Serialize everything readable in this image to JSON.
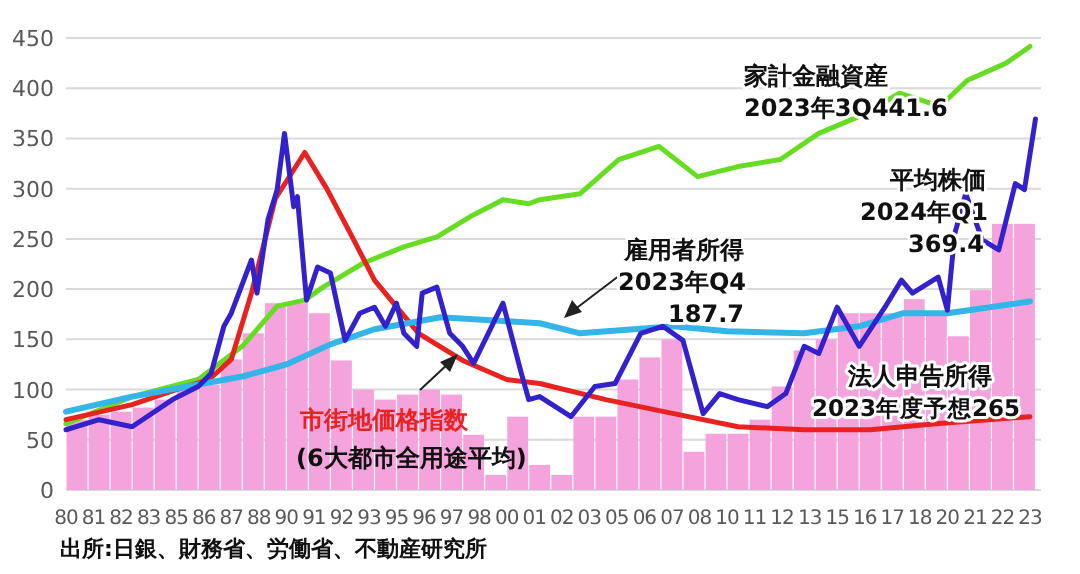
{
  "chart_data": {
    "type": "line",
    "xlim": [
      "1980-01",
      "2024-04"
    ],
    "ylim": [
      0,
      450
    ],
    "grid": "y",
    "yticks": [
      0,
      50,
      100,
      150,
      200,
      250,
      300,
      350,
      400,
      450
    ],
    "xticks": [
      {
        "value": "1980-01",
        "label": "80"
      },
      {
        "value": "1981-04",
        "label": "81"
      },
      {
        "value": "1982-07",
        "label": "82"
      },
      {
        "value": "1983-10",
        "label": "83"
      },
      {
        "value": "1985-01",
        "label": "85"
      },
      {
        "value": "1986-04",
        "label": "86"
      },
      {
        "value": "1987-07",
        "label": "87"
      },
      {
        "value": "1988-10",
        "label": "88"
      },
      {
        "value": "1990-01",
        "label": "90"
      },
      {
        "value": "1991-04",
        "label": "91"
      },
      {
        "value": "1992-07",
        "label": "92"
      },
      {
        "value": "1993-10",
        "label": "93"
      },
      {
        "value": "1995-01",
        "label": "95"
      },
      {
        "value": "1996-04",
        "label": "96"
      },
      {
        "value": "1997-07",
        "label": "97"
      },
      {
        "value": "1998-10",
        "label": "98"
      },
      {
        "value": "2000-01",
        "label": "00"
      },
      {
        "value": "2001-04",
        "label": "01"
      },
      {
        "value": "2002-07",
        "label": "02"
      },
      {
        "value": "2003-10",
        "label": "03"
      },
      {
        "value": "2005-01",
        "label": "05"
      },
      {
        "value": "2006-04",
        "label": "06"
      },
      {
        "value": "2007-07",
        "label": "07"
      },
      {
        "value": "2008-10",
        "label": "08"
      },
      {
        "value": "2010-01",
        "label": "10"
      },
      {
        "value": "2011-04",
        "label": "11"
      },
      {
        "value": "2012-07",
        "label": "12"
      },
      {
        "value": "2013-10",
        "label": "13"
      },
      {
        "value": "2015-01",
        "label": "15"
      },
      {
        "value": "2016-04",
        "label": "16"
      },
      {
        "value": "2017-07",
        "label": "17"
      },
      {
        "value": "2018-10",
        "label": "18"
      },
      {
        "value": "2020-01",
        "label": "20"
      },
      {
        "value": "2021-04",
        "label": "21"
      },
      {
        "value": "2022-07",
        "label": "22"
      },
      {
        "value": "2023-10",
        "label": "23"
      }
    ],
    "series": [
      {
        "name": "法人申告所得",
        "type": "bar",
        "color": "#f5a3dd",
        "x": [
          "1980-07",
          "1981-07",
          "1982-07",
          "1983-07",
          "1984-07",
          "1985-07",
          "1986-07",
          "1987-07",
          "1988-07",
          "1989-07",
          "1990-07",
          "1991-07",
          "1992-07",
          "1993-07",
          "1994-07",
          "1995-07",
          "1996-07",
          "1997-07",
          "1998-07",
          "1999-07",
          "2000-07",
          "2001-07",
          "2002-07",
          "2003-07",
          "2004-07",
          "2005-07",
          "2006-07",
          "2007-07",
          "2008-07",
          "2009-07",
          "2010-07",
          "2011-07",
          "2012-07",
          "2013-07",
          "2014-07",
          "2015-07",
          "2016-07",
          "2017-07",
          "2018-07",
          "2019-07",
          "2020-07",
          "2021-07",
          "2022-07",
          "2023-07"
        ],
        "values": [
          70,
          75,
          78,
          82,
          90,
          100,
          105,
          130,
          156,
          186,
          186,
          176,
          129,
          100,
          90,
          95,
          100,
          95,
          55,
          15,
          73,
          25,
          15,
          73,
          73,
          110,
          132,
          150,
          38,
          56,
          56,
          70,
          103,
          139,
          150,
          176,
          176,
          176,
          190,
          176,
          153,
          199,
          265,
          265
        ]
      },
      {
        "name": "家計金融資産",
        "color": "#66dd22",
        "x": [
          "1980-01",
          "1983-01",
          "1986-01",
          "1988-01",
          "1989-08",
          "1990-11",
          "1991-09",
          "1993-07",
          "1995-05",
          "1996-11",
          "1998-05",
          "1999-11",
          "2001-01",
          "2001-07",
          "2003-05",
          "2005-02",
          "2006-12",
          "2008-09",
          "2010-07",
          "2012-06",
          "2014-03",
          "2016-01",
          "2017-11",
          "2019-09",
          "2020-12",
          "2022-09",
          "2023-10"
        ],
        "values": [
          66,
          93,
          110,
          143,
          183,
          189,
          202,
          226,
          242,
          252,
          272,
          289,
          285,
          289,
          295,
          329,
          342,
          312,
          322,
          329,
          355,
          372,
          395,
          382,
          408,
          425,
          441.6
        ]
      },
      {
        "name": "市街地価格指数",
        "color": "#e8231f",
        "x": [
          "1980-01",
          "1983-01",
          "1985-01",
          "1986-07",
          "1987-07",
          "1988-06",
          "1989-07",
          "1990-11",
          "1991-11",
          "1992-12",
          "1994-01",
          "1996-01",
          "1998-01",
          "2000-01",
          "2001-07",
          "2004-07",
          "2007-08",
          "2010-07",
          "2013-07",
          "2016-07",
          "2019-07",
          "2023-10"
        ],
        "values": [
          70,
          85,
          100,
          110,
          130,
          196,
          290,
          336,
          300,
          255,
          209,
          156,
          129,
          110,
          106,
          90,
          76,
          63,
          60,
          60,
          66,
          73
        ]
      },
      {
        "name": "雇用者所得",
        "color": "#33b5e8",
        "x": [
          "1980-01",
          "1983-01",
          "1986-01",
          "1988-01",
          "1990-01",
          "1992-01",
          "1994-01",
          "1997-01",
          "2000-01",
          "2001-07",
          "2003-05",
          "2007-08",
          "2010-01",
          "2013-07",
          "2016-01",
          "2018-01",
          "2020-01",
          "2023-10"
        ],
        "values": [
          78,
          93,
          105,
          113,
          125,
          145,
          160,
          172,
          168,
          166,
          156,
          163,
          158,
          156,
          163,
          176,
          176,
          187.7
        ]
      },
      {
        "name": "平均株価",
        "color": "#3322cc",
        "x": [
          "1980-01",
          "1981-07",
          "1983-01",
          "1984-11",
          "1986-01",
          "1986-08",
          "1987-03",
          "1987-07",
          "1988-06",
          "1988-09",
          "1989-03",
          "1989-08",
          "1989-12",
          "1990-05",
          "1990-07",
          "1990-12",
          "1991-06",
          "1992-01",
          "1992-05",
          "1992-09",
          "1993-05",
          "1994-01",
          "1994-07",
          "1995-01",
          "1995-05",
          "1995-12",
          "1996-03",
          "1996-11",
          "1997-06",
          "1998-01",
          "1998-07",
          "1999-03",
          "1999-11",
          "2000-09",
          "2001-01",
          "2001-07",
          "2002-12",
          "2004-01",
          "2004-12",
          "2006-02",
          "2007-02",
          "2008-01",
          "2008-12",
          "2009-09",
          "2010-07",
          "2011-11",
          "2012-09",
          "2013-07",
          "2014-03",
          "2015-01",
          "2016-01",
          "2017-03",
          "2017-12",
          "2018-06",
          "2019-08",
          "2020-01",
          "2020-05",
          "2020-11",
          "2021-08",
          "2022-05",
          "2023-02",
          "2023-07",
          "2024-01"
        ],
        "values": [
          60,
          70,
          63,
          90,
          103,
          116,
          163,
          176,
          229,
          196,
          269,
          299,
          355,
          282,
          292,
          189,
          222,
          216,
          182,
          149,
          176,
          182,
          163,
          186,
          156,
          143,
          196,
          202,
          156,
          143,
          126,
          156,
          186,
          116,
          90,
          93,
          73,
          103,
          106,
          156,
          163,
          149,
          76,
          96,
          90,
          83,
          96,
          143,
          136,
          182,
          143,
          182,
          209,
          196,
          212,
          179,
          255,
          295,
          249,
          239,
          305,
          299,
          369.4
        ]
      }
    ],
    "annotations": [
      "2023年3Q441.6",
      "2024年Q1",
      "369.4",
      "2023年Q4",
      "187.7",
      "2023年度予想265",
      "(6大都市全用途平均)",
      "出所:日銀、財務省、労働省、不動産研究所"
    ]
  }
}
